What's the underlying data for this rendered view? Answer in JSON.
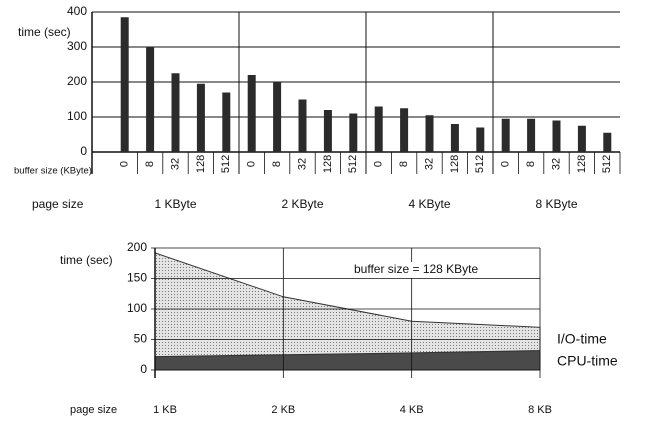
{
  "chart_data": [
    {
      "type": "bar",
      "y_label": "time (sec)",
      "x_label": "buffer size (KByte)",
      "group_label": "page size",
      "categories": [
        "0",
        "8",
        "32",
        "128",
        "512"
      ],
      "series": [
        {
          "name": "1 KByte",
          "color": "#2b2b2b",
          "values": [
            385,
            300,
            225,
            195,
            170
          ]
        },
        {
          "name": "2 KByte",
          "color": "#2b2b2b",
          "values": [
            220,
            200,
            150,
            120,
            110
          ]
        },
        {
          "name": "4 KByte",
          "color": "#2b2b2b",
          "values": [
            130,
            125,
            105,
            80,
            70
          ]
        },
        {
          "name": "8 KByte",
          "color": "#2b2b2b",
          "values": [
            95,
            95,
            90,
            75,
            55
          ]
        }
      ],
      "ylim": [
        0,
        400
      ],
      "yticks": [
        0,
        100,
        200,
        300,
        400
      ],
      "grid": true
    },
    {
      "type": "stacked_area",
      "y_label": "time (sec)",
      "x_label": "page size",
      "annotation": "buffer size = 128 KByte",
      "categories": [
        "1 KB",
        "2 KB",
        "4 KB",
        "8 KB"
      ],
      "series": [
        {
          "name": "CPU-time",
          "color": "#4a4a4a",
          "values": [
            22,
            25,
            28,
            32
          ]
        },
        {
          "name": "I/O-time",
          "color": "#c4c4c4",
          "values": [
            170,
            95,
            52,
            38
          ]
        }
      ],
      "ylim": [
        0,
        200
      ],
      "yticks": [
        0,
        50,
        100,
        150,
        200
      ],
      "grid": true
    }
  ]
}
